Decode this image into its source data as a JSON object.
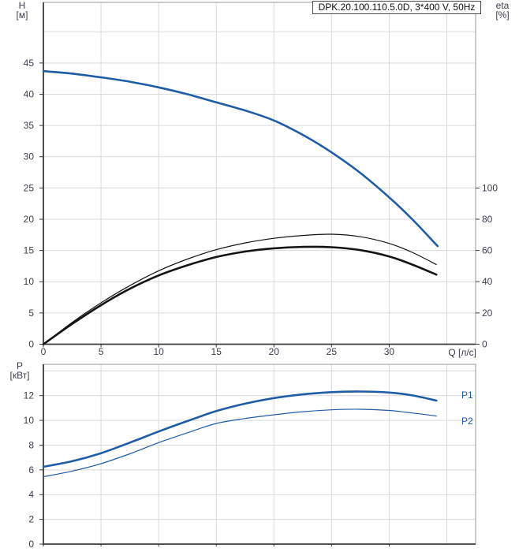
{
  "title": "DPK.20.100.110.5.0D, 3*400 V, 50Hz",
  "labels": {
    "h": "H",
    "h_unit": "[м]",
    "eta": "eta",
    "eta_unit": "[%]",
    "p": "P",
    "p_unit": "[кВт]",
    "q": "Q [л/с]",
    "p1": "P1",
    "p2": "P2"
  },
  "colors": {
    "curve_blue": "#1F5CA6",
    "curve_black": "#141414",
    "grid": "#D9D9D9",
    "axis": "#3A3A3A",
    "frame": "#9A9A9A",
    "tick_text": "#3D3D4E"
  },
  "chart_data": [
    {
      "id": "hq-chart",
      "type": "line",
      "title": "DPK.20.100.110.5.0D, 3*400 V, 50Hz",
      "xlabel": "Q [л/с]",
      "ylabel": "H [м]",
      "y2label": "eta [%]",
      "xlim": [
        0,
        37.5
      ],
      "ylim": [
        0,
        54.7
      ],
      "y2lim": [
        0,
        100
      ],
      "eta_to_h": 0.25,
      "x_ticks": [
        0,
        5,
        10,
        15,
        20,
        25,
        30
      ],
      "x_grid": [
        5,
        10,
        15,
        20,
        25,
        30,
        35
      ],
      "y_ticks": [
        0,
        5,
        10,
        15,
        20,
        25,
        30,
        35,
        40,
        45
      ],
      "y_grid": [
        5,
        10,
        15,
        20,
        25,
        30,
        35,
        40,
        45,
        50
      ],
      "y2_ticks": [
        0,
        20,
        40,
        60,
        80,
        100
      ],
      "show_x_tick_labels": true,
      "grid_on": true,
      "series": [
        {
          "name": "H",
          "axis": "y",
          "color": "#1F5CA6",
          "width": 2.6,
          "points": [
            [
              0,
              43.7
            ],
            [
              2.5,
              43.3
            ],
            [
              5,
              42.7
            ],
            [
              7.5,
              42.0
            ],
            [
              10,
              41.1
            ],
            [
              12.5,
              40.0
            ],
            [
              15,
              38.7
            ],
            [
              17.5,
              37.4
            ],
            [
              20,
              35.8
            ],
            [
              22.5,
              33.5
            ],
            [
              25,
              30.7
            ],
            [
              27.5,
              27.4
            ],
            [
              30,
              23.5
            ],
            [
              32,
              20.0
            ],
            [
              34.2,
              15.7
            ]
          ]
        },
        {
          "name": "eta1",
          "axis": "y2",
          "color": "#141414",
          "width": 1.2,
          "points": [
            [
              0,
              0
            ],
            [
              2.5,
              14
            ],
            [
              5,
              26.5
            ],
            [
              7.5,
              37.5
            ],
            [
              10,
              47
            ],
            [
              12.5,
              54.5
            ],
            [
              15,
              60.5
            ],
            [
              17.5,
              64.8
            ],
            [
              20,
              67.8
            ],
            [
              22.5,
              69.6
            ],
            [
              25,
              70.4
            ],
            [
              27.5,
              68.8
            ],
            [
              30,
              64.5
            ],
            [
              32,
              58.8
            ],
            [
              34.1,
              51
            ]
          ]
        },
        {
          "name": "eta2",
          "axis": "y2",
          "color": "#141414",
          "width": 2.6,
          "points": [
            [
              0,
              0
            ],
            [
              2.5,
              13
            ],
            [
              5,
              25
            ],
            [
              7.5,
              35.5
            ],
            [
              10,
              44
            ],
            [
              12.5,
              50.5
            ],
            [
              15,
              55.8
            ],
            [
              17.5,
              59.3
            ],
            [
              20,
              61.4
            ],
            [
              22.5,
              62.3
            ],
            [
              25,
              62.1
            ],
            [
              27.5,
              60.2
            ],
            [
              30,
              56.2
            ],
            [
              32,
              51
            ],
            [
              34.1,
              44.5
            ]
          ]
        }
      ]
    },
    {
      "id": "pq-chart",
      "type": "line",
      "xlabel": "Q [л/с]",
      "ylabel": "P [кВт]",
      "xlim": [
        0,
        37.5
      ],
      "ylim": [
        0,
        14.53
      ],
      "x_ticks": [
        0,
        5,
        10,
        15,
        20,
        25,
        30
      ],
      "x_grid": [
        5,
        10,
        15,
        20,
        25,
        30,
        35
      ],
      "y_ticks": [
        0,
        2,
        4,
        6,
        8,
        10,
        12
      ],
      "y_grid": [
        2,
        4,
        6,
        8,
        10,
        12,
        14
      ],
      "show_x_tick_labels": false,
      "grid_on": true,
      "series": [
        {
          "name": "P1",
          "axis": "y",
          "color": "#1F5CA6",
          "width": 2.6,
          "points": [
            [
              0,
              6.25
            ],
            [
              2.5,
              6.7
            ],
            [
              5,
              7.35
            ],
            [
              7.5,
              8.2
            ],
            [
              10,
              9.1
            ],
            [
              12.5,
              9.95
            ],
            [
              15,
              10.75
            ],
            [
              17.5,
              11.35
            ],
            [
              20,
              11.8
            ],
            [
              22.5,
              12.1
            ],
            [
              25,
              12.28
            ],
            [
              27.5,
              12.33
            ],
            [
              30,
              12.25
            ],
            [
              32,
              12.02
            ],
            [
              34.1,
              11.6
            ]
          ]
        },
        {
          "name": "P2",
          "axis": "y",
          "color": "#1F5CA6",
          "width": 1.2,
          "points": [
            [
              0,
              5.45
            ],
            [
              2.5,
              5.9
            ],
            [
              5,
              6.5
            ],
            [
              7.5,
              7.3
            ],
            [
              10,
              8.2
            ],
            [
              12.5,
              9.0
            ],
            [
              15,
              9.75
            ],
            [
              17.5,
              10.15
            ],
            [
              20,
              10.45
            ],
            [
              22.5,
              10.7
            ],
            [
              25,
              10.85
            ],
            [
              27.5,
              10.9
            ],
            [
              30,
              10.8
            ],
            [
              32,
              10.6
            ],
            [
              34.1,
              10.35
            ]
          ]
        }
      ]
    }
  ]
}
